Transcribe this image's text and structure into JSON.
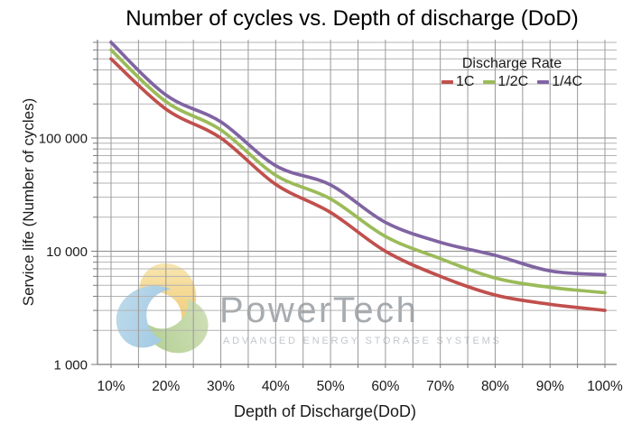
{
  "title": "Number of cycles vs. Depth of discharge (DoD)",
  "legend": {
    "title": "Discharge Rate",
    "entries": [
      {
        "id": "1c",
        "label": "1C",
        "color": "#C0504D"
      },
      {
        "id": "1-2c",
        "label": "1/2C",
        "color": "#9BBB59"
      },
      {
        "id": "1-4c",
        "label": "1/4C",
        "color": "#8064A2"
      }
    ]
  },
  "axes": {
    "x_title": "Depth of Discharge(DoD)",
    "y_title": "Service life (Number of cycles)",
    "x_tick_labels": [
      "10%",
      "20%",
      "30%",
      "40%",
      "50%",
      "60%",
      "70%",
      "80%",
      "90%",
      "100%"
    ],
    "y_ticks": [
      {
        "value": 1000,
        "label": "1 000"
      },
      {
        "value": 10000,
        "label": "10 000"
      },
      {
        "value": 100000,
        "label": "100 000"
      }
    ]
  },
  "watermark": {
    "brand": "PowerTech",
    "tagline": "ADVANCED ENERGY STORAGE SYSTEMS"
  },
  "chart_data": {
    "type": "line",
    "title": "Number of cycles vs. Depth of discharge (DoD)",
    "xlabel": "Depth of Discharge(DoD)",
    "ylabel": "Service life (Number of cycles)",
    "x_percent": [
      10,
      20,
      30,
      40,
      50,
      60,
      70,
      80,
      90,
      100
    ],
    "series": [
      {
        "id": "1c",
        "name": "1C",
        "color": "#C0504D",
        "values": [
          500000,
          180000,
          100000,
          39000,
          22000,
          10000,
          6000,
          4100,
          3400,
          3000
        ]
      },
      {
        "id": "1-2c",
        "name": "1/2C",
        "color": "#9BBB59",
        "values": [
          600000,
          210000,
          118000,
          47000,
          29000,
          13500,
          8600,
          5800,
          4800,
          4300
        ]
      },
      {
        "id": "1-4c",
        "name": "1/4C",
        "color": "#8064A2",
        "values": [
          700000,
          240000,
          139000,
          57000,
          38500,
          18000,
          12000,
          9200,
          6700,
          6200
        ]
      }
    ],
    "y_scale": "log",
    "ylim": [
      1000,
      740000
    ],
    "xlim_percent": [
      10,
      100
    ],
    "x_minor_step_percent": 5,
    "grid": true,
    "legend_title": "Discharge Rate",
    "legend_position": "top-right"
  }
}
